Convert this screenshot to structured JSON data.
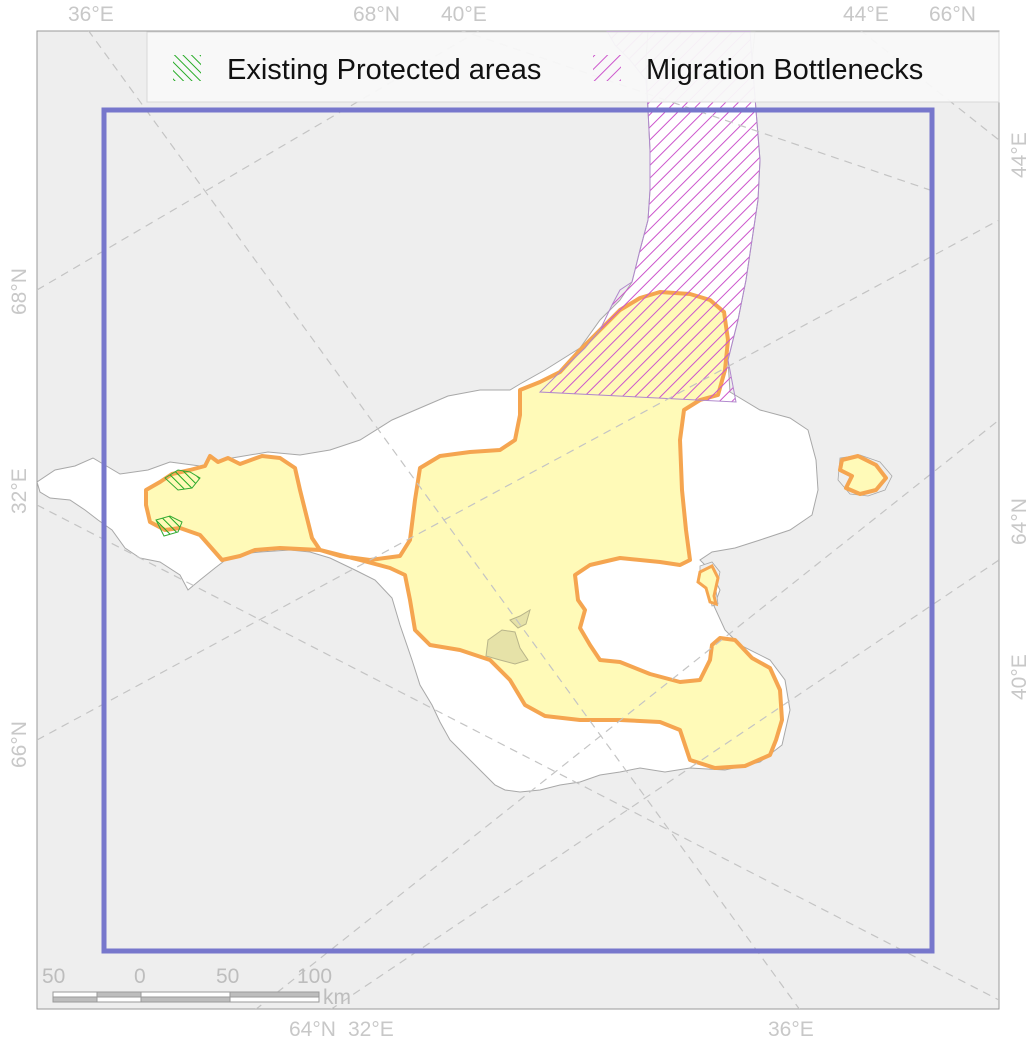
{
  "legend": {
    "items": [
      {
        "label": "Existing Protected areas",
        "pattern": "green-hatch",
        "color": "#22aa22"
      },
      {
        "label": "Migration Bottlenecks",
        "pattern": "purple-hatch",
        "color": "#cc44cc"
      }
    ]
  },
  "graticule": {
    "top": [
      "36°E",
      "68°N",
      "40°E",
      "44°E",
      "66°N"
    ],
    "left": [
      "68°N",
      "32°E",
      "66°N"
    ],
    "right": [
      "44°E",
      "64°N",
      "40°E"
    ],
    "bottom": [
      "64°N",
      "32°E",
      "36°E"
    ]
  },
  "scale_bar": {
    "ticks": [
      "50",
      "0",
      "50",
      "100"
    ],
    "unit": "km"
  },
  "colors": {
    "land": "#eeeeee",
    "sea": "#ffffff",
    "study_area_fill": "#fffab8",
    "study_area_outline": "#f5a550",
    "extent_box": "#7777cc",
    "protected_hatch": "#22aa22",
    "bottleneck_hatch": "#cc44cc",
    "graticule": "#c8c8c8"
  }
}
